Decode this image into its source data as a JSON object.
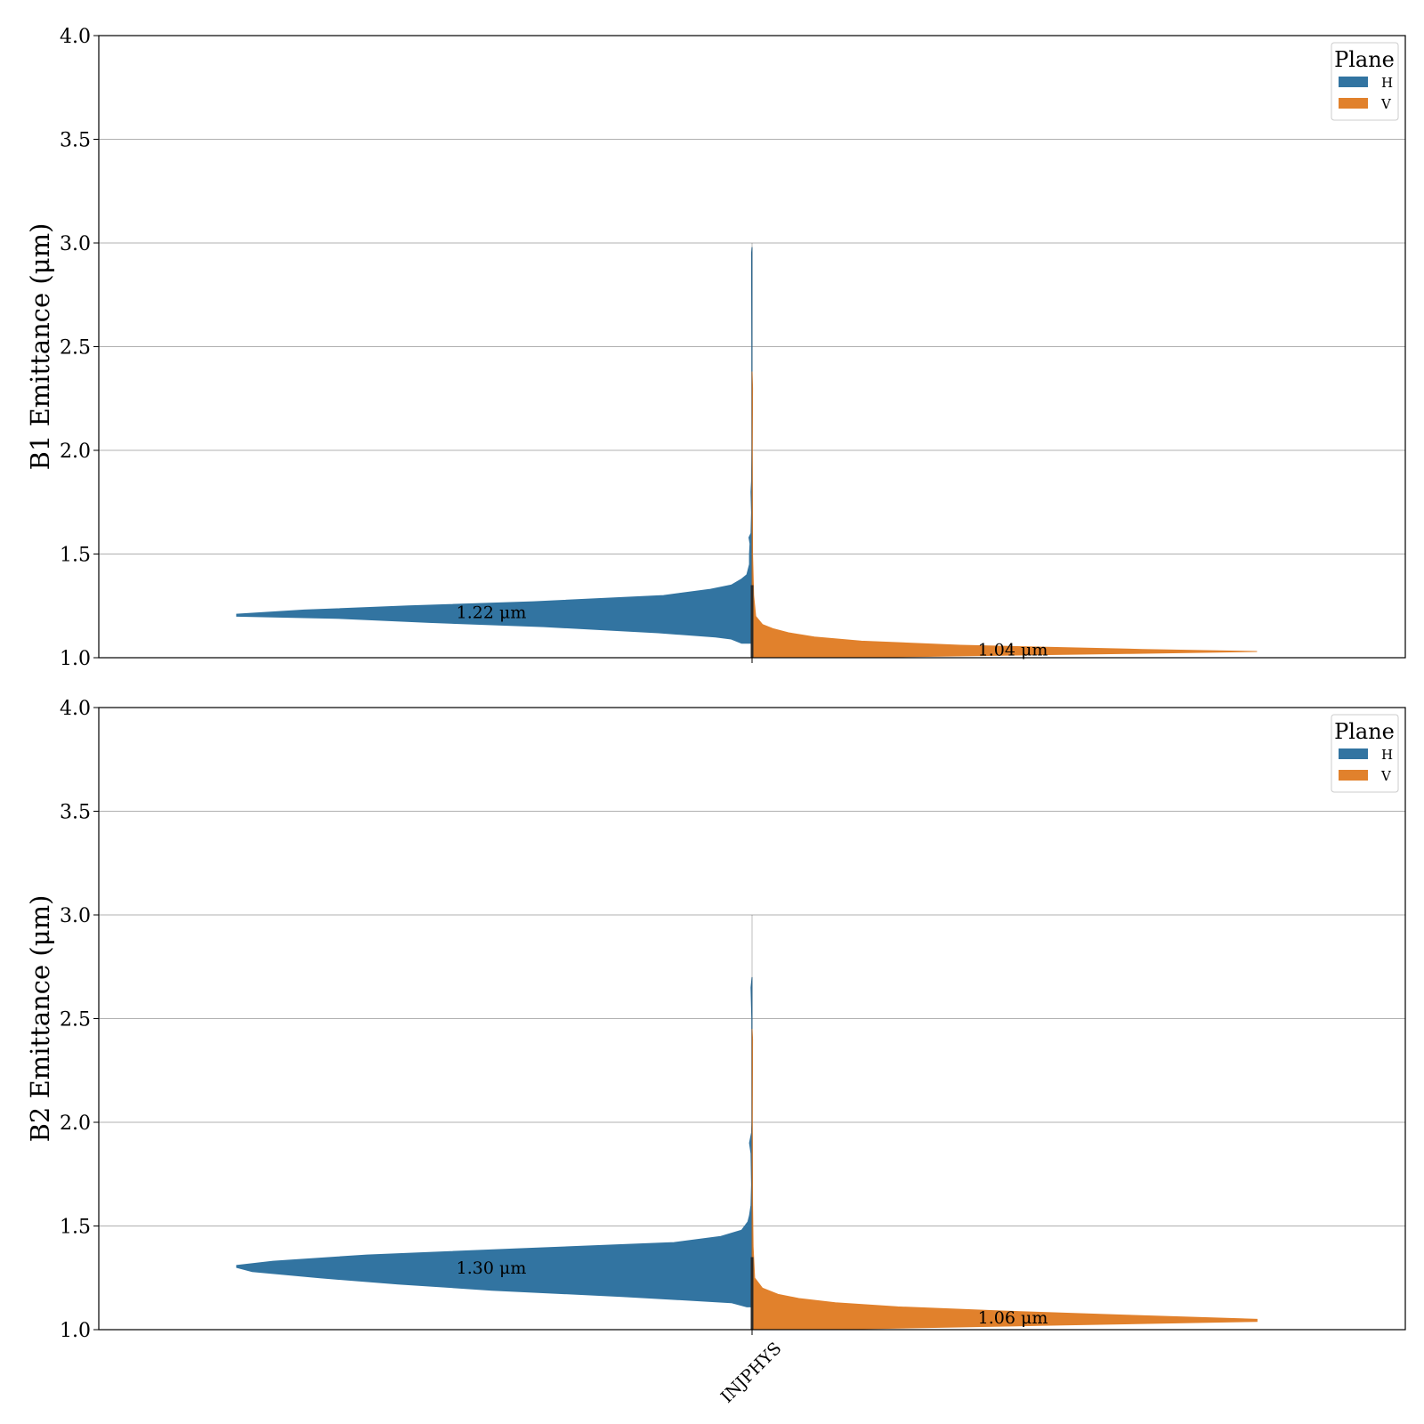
{
  "legend": {
    "title": "Plane",
    "entries": [
      {
        "label": "H",
        "color": "#3274a1"
      },
      {
        "label": "V",
        "color": "#e1812c"
      }
    ]
  },
  "chart_data": [
    {
      "type": "violin",
      "split": true,
      "ylabel": "B1 Emittance (μm)",
      "ylim": [
        1.0,
        4.0
      ],
      "yticks": [
        "1.0",
        "1.5",
        "2.0",
        "2.5",
        "3.0",
        "3.5",
        "4.0"
      ],
      "grid": "horizontal",
      "legend_position": "top-right",
      "categories": [
        "INJPHYS"
      ],
      "show_category_labels": false,
      "series": [
        {
          "name": "H",
          "side": "left",
          "color": "#3274a1",
          "annotation": "1.22 μm",
          "annotation_y": 1.22,
          "profile": [
            [
              1.07,
              0.02
            ],
            [
              1.09,
              0.04
            ],
            [
              1.1,
              0.07
            ],
            [
              1.12,
              0.18
            ],
            [
              1.15,
              0.4
            ],
            [
              1.17,
              0.62
            ],
            [
              1.19,
              0.8
            ],
            [
              1.2,
              0.99
            ],
            [
              1.21,
              0.99
            ],
            [
              1.23,
              0.86
            ],
            [
              1.25,
              0.66
            ],
            [
              1.27,
              0.42
            ],
            [
              1.3,
              0.17
            ],
            [
              1.33,
              0.08
            ],
            [
              1.35,
              0.04
            ],
            [
              1.38,
              0.02
            ],
            [
              1.4,
              0.01
            ],
            [
              1.45,
              0.005
            ],
            [
              1.5,
              0.005
            ],
            [
              1.55,
              0.004
            ],
            [
              1.58,
              0.006
            ],
            [
              1.6,
              0.002
            ],
            [
              1.7,
              0.001
            ],
            [
              1.8,
              0.002
            ],
            [
              1.85,
              0.001
            ],
            [
              2.0,
              0.0005
            ],
            [
              2.5,
              0.0005
            ],
            [
              2.95,
              0.001
            ],
            [
              2.98,
              0.0
            ]
          ]
        },
        {
          "name": "V",
          "side": "right",
          "color": "#e1812c",
          "annotation": "1.04 μm",
          "annotation_y": 1.04,
          "profile": [
            [
              1.0,
              0.15
            ],
            [
              1.02,
              0.72
            ],
            [
              1.03,
              0.97
            ],
            [
              1.04,
              0.75
            ],
            [
              1.06,
              0.4
            ],
            [
              1.08,
              0.21
            ],
            [
              1.1,
              0.12
            ],
            [
              1.12,
              0.07
            ],
            [
              1.14,
              0.04
            ],
            [
              1.16,
              0.02
            ],
            [
              1.2,
              0.007
            ],
            [
              1.3,
              0.003
            ],
            [
              1.5,
              0.001
            ],
            [
              2.0,
              0.0005
            ],
            [
              2.3,
              0.001
            ],
            [
              2.38,
              0.0
            ]
          ]
        }
      ]
    },
    {
      "type": "violin",
      "split": true,
      "ylabel": "B2 Emittance (μm)",
      "ylim": [
        1.0,
        4.0
      ],
      "yticks": [
        "1.0",
        "1.5",
        "2.0",
        "2.5",
        "3.0",
        "3.5",
        "4.0"
      ],
      "grid": "horizontal",
      "legend_position": "top-right",
      "categories": [
        "INJPHYS"
      ],
      "show_category_labels": true,
      "series": [
        {
          "name": "H",
          "side": "left",
          "color": "#3274a1",
          "annotation": "1.30 μm",
          "annotation_y": 1.3,
          "profile": [
            [
              1.11,
              0.01
            ],
            [
              1.13,
              0.04
            ],
            [
              1.16,
              0.25
            ],
            [
              1.19,
              0.5
            ],
            [
              1.22,
              0.68
            ],
            [
              1.25,
              0.83
            ],
            [
              1.28,
              0.96
            ],
            [
              1.3,
              0.99
            ],
            [
              1.31,
              0.99
            ],
            [
              1.33,
              0.92
            ],
            [
              1.36,
              0.74
            ],
            [
              1.39,
              0.45
            ],
            [
              1.42,
              0.15
            ],
            [
              1.45,
              0.06
            ],
            [
              1.48,
              0.02
            ],
            [
              1.52,
              0.008
            ],
            [
              1.55,
              0.005
            ],
            [
              1.6,
              0.002
            ],
            [
              1.7,
              0.001
            ],
            [
              1.85,
              0.002
            ],
            [
              1.9,
              0.005
            ],
            [
              1.95,
              0.001
            ],
            [
              2.0,
              0.0005
            ],
            [
              2.5,
              0.0005
            ],
            [
              2.65,
              0.002
            ],
            [
              2.7,
              0.0
            ]
          ]
        },
        {
          "name": "V",
          "side": "right",
          "color": "#e1812c",
          "annotation": "1.06 μm",
          "annotation_y": 1.06,
          "profile": [
            [
              1.0,
              0.12
            ],
            [
              1.02,
              0.55
            ],
            [
              1.04,
              0.97
            ],
            [
              1.05,
              0.97
            ],
            [
              1.07,
              0.72
            ],
            [
              1.09,
              0.48
            ],
            [
              1.11,
              0.28
            ],
            [
              1.13,
              0.16
            ],
            [
              1.15,
              0.09
            ],
            [
              1.17,
              0.05
            ],
            [
              1.2,
              0.02
            ],
            [
              1.25,
              0.005
            ],
            [
              1.4,
              0.002
            ],
            [
              1.6,
              0.001
            ],
            [
              2.0,
              0.0005
            ],
            [
              2.4,
              0.001
            ],
            [
              2.45,
              0.0
            ]
          ]
        }
      ]
    }
  ]
}
